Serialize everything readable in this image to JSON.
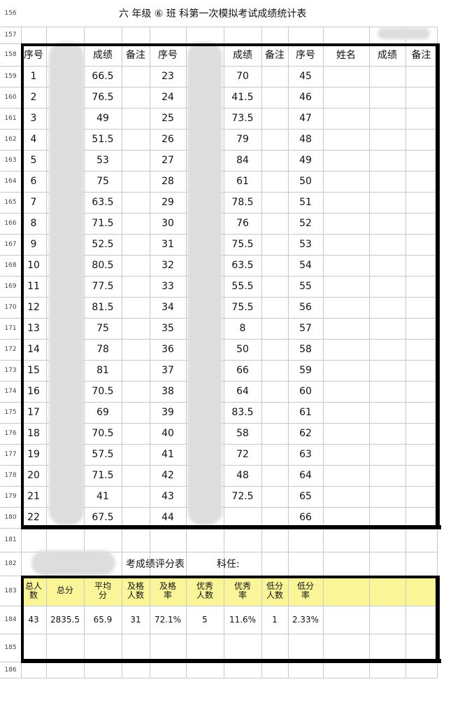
{
  "title": "六 年级 ⑥ 班   科第一次模拟考试成绩统计表",
  "row_numbers": [
    156,
    157,
    158,
    159,
    160,
    161,
    162,
    163,
    164,
    165,
    166,
    167,
    168,
    169,
    170,
    171,
    172,
    173,
    174,
    175,
    176,
    177,
    178,
    179,
    180,
    181,
    182,
    183,
    184,
    185,
    186
  ],
  "table": {
    "groups": [
      {
        "headers": {
          "number": "序号",
          "score": "成绩",
          "note": "备注"
        },
        "numbers": [
          1,
          2,
          3,
          4,
          5,
          6,
          7,
          8,
          9,
          10,
          11,
          12,
          13,
          14,
          15,
          16,
          17,
          18,
          19,
          20,
          21,
          22
        ],
        "scores": [
          66.5,
          76.5,
          49,
          51.5,
          53,
          75,
          63.5,
          71.5,
          52.5,
          80.5,
          77.5,
          81.5,
          75,
          78,
          81,
          70.5,
          69,
          70.5,
          57.5,
          71.5,
          41,
          67.5
        ]
      },
      {
        "headers": {
          "number": "序号",
          "score": "成绩",
          "note": "备注"
        },
        "numbers": [
          23,
          24,
          25,
          26,
          27,
          28,
          29,
          30,
          31,
          32,
          33,
          34,
          35,
          36,
          37,
          38,
          39,
          40,
          41,
          42,
          43,
          44
        ],
        "scores": [
          70,
          41.5,
          73.5,
          79,
          84,
          61,
          78.5,
          76,
          75.5,
          63.5,
          55.5,
          75.5,
          8,
          50,
          66,
          64,
          83.5,
          58,
          72,
          48,
          72.5
        ]
      },
      {
        "headers": {
          "number": "序号",
          "name": "姓名",
          "score": "成绩",
          "note": "备注"
        },
        "numbers": [
          45,
          46,
          47,
          48,
          49,
          50,
          51,
          52,
          53,
          54,
          55,
          56,
          57,
          58,
          59,
          60,
          61,
          62,
          63,
          64,
          65,
          66
        ],
        "scores": []
      }
    ]
  },
  "summary": {
    "subtitle": "考成绩评分表",
    "teacher": "科任:",
    "headers": [
      "总人数",
      "总分",
      "平均分",
      "及格人数",
      "及格率",
      "优秀人数",
      "优秀率",
      "低分人数",
      "低分率"
    ],
    "values": [
      "43",
      "2835.5",
      "65.9",
      "31",
      "72.1%",
      "5",
      "11.6%",
      "1",
      "2.33%"
    ]
  }
}
